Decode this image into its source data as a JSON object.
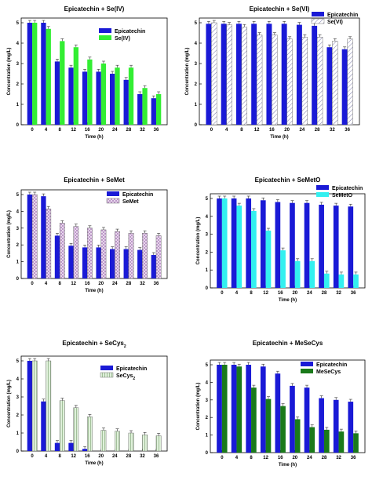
{
  "chart_data": [
    {
      "type": "bar",
      "title": "Epicatechin + Se(IV)",
      "xlabel": "Time (h)",
      "ylabel": "Concentration (mg/L)",
      "categories": [
        "0",
        "4",
        "8",
        "12",
        "16",
        "20",
        "24",
        "28",
        "32",
        "36"
      ],
      "ylim": [
        0,
        5
      ],
      "yticks": [
        "0",
        "1",
        "2",
        "3",
        "4",
        "5"
      ],
      "legend_position": "top-right",
      "series": [
        {
          "name": "Epicatechin",
          "color": "#1a1ad6",
          "pattern": "solid",
          "values": [
            5.0,
            5.0,
            3.1,
            2.8,
            2.6,
            2.6,
            2.5,
            2.2,
            1.5,
            1.3
          ]
        },
        {
          "name": "Se(IV)",
          "color": "#33ee33",
          "pattern": "solid",
          "values": [
            5.0,
            4.7,
            4.1,
            3.8,
            3.2,
            3.0,
            2.8,
            2.8,
            1.8,
            1.5
          ]
        }
      ]
    },
    {
      "type": "bar",
      "title": "Epicatechin + Se(VI)",
      "xlabel": "Time (h)",
      "ylabel": "Concentration (mg/L)",
      "categories": [
        "0",
        "4",
        "8",
        "12",
        "16",
        "20",
        "24",
        "28",
        "32",
        "36"
      ],
      "ylim": [
        0,
        5
      ],
      "yticks": [
        "0",
        "1",
        "2",
        "3",
        "4",
        "5"
      ],
      "legend_position": "top-right",
      "series": [
        {
          "name": "Epicatechin",
          "color": "#1a1ad6",
          "pattern": "solid",
          "values": [
            4.95,
            4.95,
            4.95,
            4.95,
            4.95,
            4.95,
            4.9,
            4.85,
            3.8,
            3.7
          ]
        },
        {
          "name": "Se(VI)",
          "color": "#ffffff",
          "pattern": "hatch",
          "values": [
            5.0,
            4.9,
            4.8,
            4.4,
            4.4,
            4.2,
            4.3,
            4.3,
            4.1,
            4.2
          ]
        }
      ]
    },
    {
      "type": "bar",
      "title": "Epicatechin + SeMet",
      "xlabel": "Time (h)",
      "ylabel": "Concentration (mg/L)",
      "categories": [
        "0",
        "4",
        "8",
        "12",
        "16",
        "20",
        "24",
        "28",
        "32",
        "36"
      ],
      "ylim": [
        0,
        5
      ],
      "yticks": [
        "0",
        "1",
        "2",
        "3",
        "4",
        "5"
      ],
      "legend_position": "top-right",
      "series": [
        {
          "name": "Epicatechin",
          "color": "#1a1ad6",
          "pattern": "solid",
          "values": [
            5.0,
            4.9,
            2.55,
            1.95,
            1.85,
            1.85,
            1.75,
            1.75,
            1.7,
            1.4
          ]
        },
        {
          "name": "SeMet",
          "color": "#e8d0ec",
          "pattern": "crosshatch",
          "values": [
            5.0,
            4.15,
            3.3,
            3.1,
            3.0,
            2.9,
            2.8,
            2.7,
            2.7,
            2.55
          ]
        }
      ]
    },
    {
      "type": "bar",
      "title": "Epicatechin + SeMetO",
      "xlabel": "Time (h)",
      "ylabel": "Concentration (mg/L)",
      "categories": [
        "0",
        "4",
        "8",
        "12",
        "16",
        "20",
        "24",
        "28",
        "32",
        "36"
      ],
      "ylim": [
        0,
        5
      ],
      "yticks": [
        "0",
        "1",
        "2",
        "3",
        "4",
        "5"
      ],
      "legend_position": "top-right",
      "series": [
        {
          "name": "Epicatechin",
          "color": "#1a1ad6",
          "pattern": "solid",
          "values": [
            5.0,
            5.0,
            5.0,
            4.9,
            4.8,
            4.75,
            4.75,
            4.65,
            4.6,
            4.55
          ]
        },
        {
          "name": "SeMetO",
          "color": "#33f0f0",
          "pattern": "solid",
          "values": [
            5.0,
            4.6,
            4.3,
            3.2,
            2.1,
            1.5,
            1.5,
            0.8,
            0.75,
            0.75
          ]
        }
      ]
    },
    {
      "type": "bar",
      "title": "Epicatechin + SeCys",
      "title_subscript": "2",
      "xlabel": "Time (h)",
      "ylabel": "Concentration (mg/L)",
      "categories": [
        "0",
        "4",
        "8",
        "12",
        "16",
        "20",
        "24",
        "28",
        "32",
        "36"
      ],
      "ylim": [
        0,
        5
      ],
      "yticks": [
        "0",
        "1",
        "2",
        "3",
        "4",
        "5"
      ],
      "legend_position": "top-right",
      "series": [
        {
          "name": "Epicatechin",
          "color": "#1a1ad6",
          "pattern": "solid",
          "values": [
            5.0,
            2.75,
            0.45,
            0.45,
            0.12,
            0.0,
            0.0,
            0.0,
            0.0,
            0.0
          ]
        },
        {
          "name": "SeCys",
          "name_subscript": "2",
          "color": "#d4ecd0",
          "pattern": "vlines",
          "values": [
            5.0,
            5.0,
            2.8,
            2.4,
            1.9,
            1.15,
            1.1,
            1.0,
            0.9,
            0.85
          ]
        }
      ]
    },
    {
      "type": "bar",
      "title": "Epicatechin + MeSeCys",
      "xlabel": "Time (h)",
      "ylabel": "Concentration (mg/L)",
      "categories": [
        "0",
        "4",
        "8",
        "12",
        "16",
        "20",
        "24",
        "28",
        "32",
        "36"
      ],
      "ylim": [
        0,
        5
      ],
      "yticks": [
        "0",
        "1",
        "2",
        "3",
        "4",
        "5"
      ],
      "legend_position": "top-right",
      "series": [
        {
          "name": "Epicatechin",
          "color": "#1a1ad6",
          "pattern": "solid",
          "values": [
            5.0,
            5.0,
            5.0,
            4.9,
            4.5,
            3.8,
            3.7,
            3.1,
            3.0,
            2.9
          ]
        },
        {
          "name": "MeSeCys",
          "color": "#1a7a1a",
          "pattern": "solid",
          "values": [
            5.0,
            4.9,
            3.7,
            3.05,
            2.65,
            1.9,
            1.45,
            1.3,
            1.2,
            1.1
          ]
        }
      ]
    }
  ]
}
